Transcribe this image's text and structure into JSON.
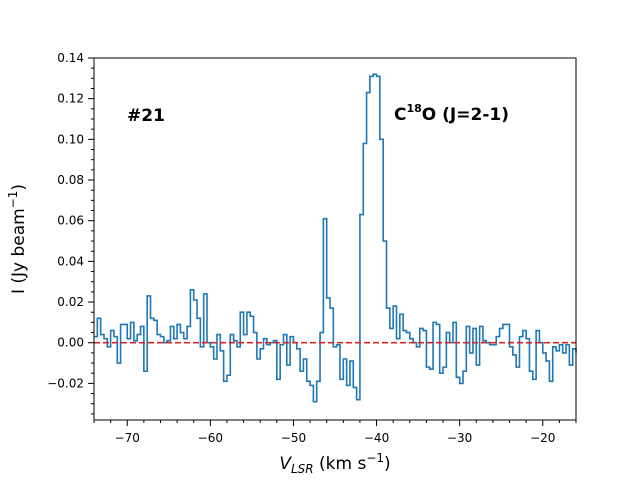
{
  "chart_data": {
    "type": "line",
    "style": "step",
    "title": "",
    "xlabel": "V",
    "xlabel_sub": "LSR",
    "xlabel_unit": " (km s",
    "xlabel_unit_sup": "−1",
    "xlabel_unit_close": ")",
    "ylabel": "I (Jy beam",
    "ylabel_sup": "−1",
    "ylabel_close": ")",
    "xlim": [
      -74,
      -16
    ],
    "ylim": [
      -0.038,
      0.14
    ],
    "xticks": [
      -70,
      -60,
      -50,
      -40,
      -30,
      -20
    ],
    "xtick_labels": [
      "−70",
      "−60",
      "−50",
      "−40",
      "−30",
      "−20"
    ],
    "yticks": [
      -0.02,
      0,
      0.02,
      0.04,
      0.06,
      0.08,
      0.1,
      0.12,
      0.14
    ],
    "ytick_labels": [
      "−0.02",
      "0.00",
      "0.02",
      "0.04",
      "0.06",
      "0.08",
      "0.10",
      "0.12",
      "0.14"
    ],
    "series": [
      {
        "name": "C18O spectrum",
        "color": "#1f77b4",
        "x": [
          -74.0,
          -73.6,
          -73.2,
          -72.8,
          -72.4,
          -72.0,
          -71.6,
          -71.2,
          -70.8,
          -70.4,
          -70.0,
          -69.6,
          -69.2,
          -68.8,
          -68.4,
          -68.0,
          -67.6,
          -67.2,
          -66.8,
          -66.4,
          -66.0,
          -65.6,
          -65.2,
          -64.8,
          -64.4,
          -64.0,
          -63.6,
          -63.2,
          -62.8,
          -62.4,
          -62.0,
          -61.6,
          -61.2,
          -60.8,
          -60.4,
          -60.0,
          -59.6,
          -59.2,
          -58.8,
          -58.4,
          -58.0,
          -57.6,
          -57.2,
          -56.8,
          -56.4,
          -56.0,
          -55.6,
          -55.2,
          -54.8,
          -54.4,
          -54.0,
          -53.6,
          -53.2,
          -52.8,
          -52.4,
          -52.0,
          -51.6,
          -51.2,
          -50.8,
          -50.4,
          -50.0,
          -49.6,
          -49.2,
          -48.8,
          -48.4,
          -48.0,
          -47.6,
          -47.2,
          -46.8,
          -46.4,
          -46.0,
          -45.6,
          -45.2,
          -44.8,
          -44.4,
          -44.0,
          -43.6,
          -43.2,
          -42.8,
          -42.4,
          -42.0,
          -41.6,
          -41.2,
          -40.8,
          -40.4,
          -40.0,
          -39.6,
          -39.2,
          -38.8,
          -38.4,
          -38.0,
          -37.6,
          -37.2,
          -36.8,
          -36.4,
          -36.0,
          -35.6,
          -35.2,
          -34.8,
          -34.4,
          -34.0,
          -33.6,
          -33.2,
          -32.8,
          -32.4,
          -32.0,
          -31.6,
          -31.2,
          -30.8,
          -30.4,
          -30.0,
          -29.6,
          -29.2,
          -28.8,
          -28.4,
          -28.0,
          -27.6,
          -27.2,
          -26.8,
          -26.4,
          -26.0,
          -25.6,
          -25.2,
          -24.8,
          -24.4,
          -24.0,
          -23.6,
          -23.2,
          -22.8,
          -22.4,
          -22.0,
          -21.6,
          -21.2,
          -20.8,
          -20.4,
          -20.0,
          -19.6,
          -19.2,
          -18.8,
          -18.4,
          -18.0,
          -17.6,
          -17.2,
          -16.8,
          -16.4,
          -16.0
        ],
        "values": [
          0.003,
          0.012,
          0.004,
          0.002,
          -0.002,
          0.006,
          0.003,
          -0.01,
          0.009,
          0.009,
          0.002,
          0.01,
          0.001,
          0.004,
          0.008,
          -0.014,
          0.023,
          0.012,
          0.011,
          0.004,
          0.003,
          0.0,
          0.001,
          0.008,
          0.002,
          0.009,
          0.005,
          0.002,
          0.008,
          0.026,
          0.021,
          0.012,
          -0.002,
          0.024,
          0.0,
          -0.002,
          -0.008,
          0.004,
          -0.004,
          -0.019,
          -0.016,
          0.004,
          0.001,
          -0.002,
          0.015,
          0.004,
          0.015,
          0.013,
          0.005,
          -0.008,
          -0.003,
          0.002,
          -0.001,
          0.0,
          0.001,
          -0.018,
          -0.001,
          0.004,
          -0.011,
          0.003,
          0.0,
          -0.003,
          -0.014,
          -0.008,
          -0.019,
          -0.021,
          -0.029,
          -0.019,
          0.005,
          0.061,
          0.022,
          0.017,
          -0.002,
          -0.001,
          -0.018,
          -0.008,
          -0.021,
          -0.009,
          -0.022,
          -0.028,
          0.063,
          0.098,
          0.123,
          0.131,
          0.132,
          0.131,
          0.1,
          0.05,
          0.017,
          0.007,
          0.018,
          0.002,
          0.014,
          0.006,
          0.005,
          0.002,
          0.0,
          -0.002,
          0.007,
          0.006,
          -0.012,
          -0.013,
          0.01,
          0.009,
          -0.015,
          -0.012,
          0.005,
          0.0,
          0.01,
          -0.017,
          -0.02,
          -0.014,
          0.008,
          -0.005,
          0.007,
          -0.011,
          0.008,
          0.001,
          0.0,
          -0.001,
          -0.001,
          0.003,
          0.007,
          0.009,
          0.009,
          -0.002,
          -0.006,
          -0.012,
          0.003,
          0.006,
          0.002,
          -0.014,
          -0.018,
          0.006,
          0.0,
          -0.005,
          -0.009,
          -0.019,
          -0.002,
          -0.004,
          -0.001,
          -0.005,
          -0.001,
          -0.011,
          -0.003,
          -0.005
        ]
      }
    ],
    "reference_line": {
      "y": 0,
      "color": "#d62728",
      "style": "dashed"
    },
    "annotations": [
      {
        "text": "#21",
        "position": "top-left"
      },
      {
        "text_parts": [
          "C",
          "18",
          "O (J=2-1)"
        ],
        "position": "top-right"
      }
    ],
    "grid": false
  }
}
